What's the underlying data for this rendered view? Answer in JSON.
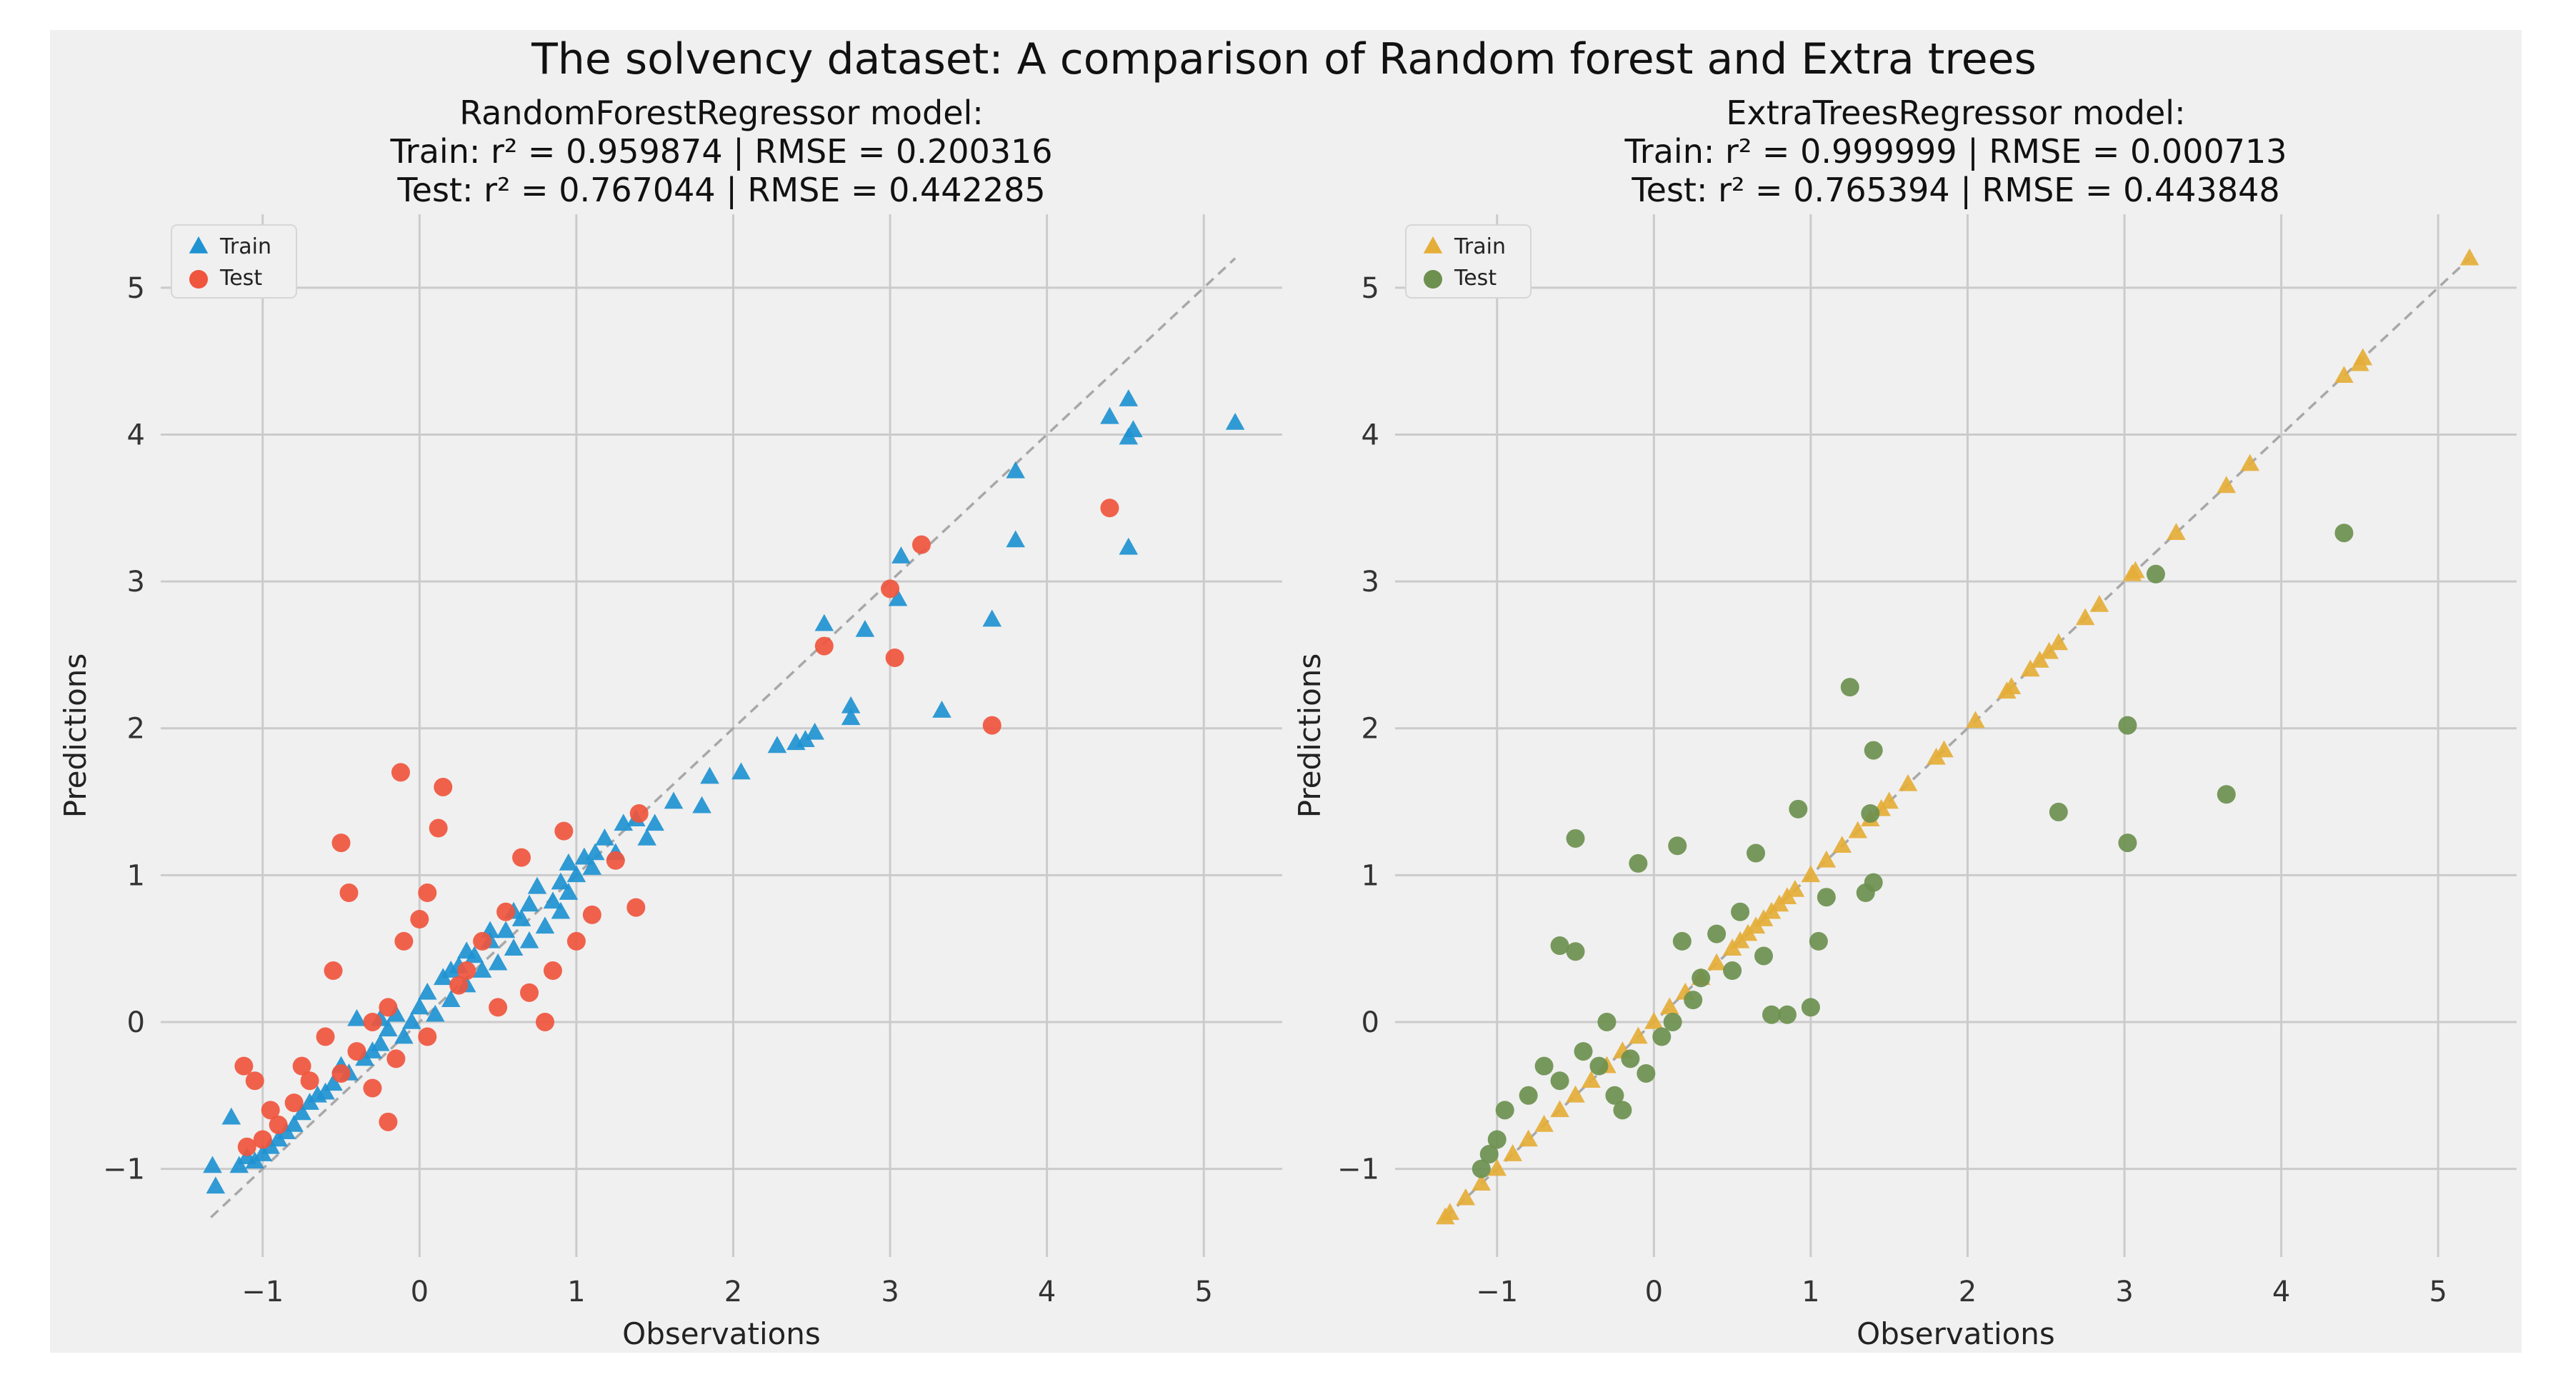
{
  "suptitle": "The solvency dataset: A comparison of  Random forest and Extra trees",
  "colors": {
    "figure_bg": "#f0f0f0",
    "axes_bg": "#f0f0f0",
    "grid": "#cbcbcb",
    "rf_train": "#1f93d1",
    "rf_test": "#f0553d",
    "et_train": "#e5ae38",
    "et_test": "#6d904f",
    "diagonal": "#a8a8a8"
  },
  "chart_data": [
    {
      "type": "scatter",
      "title": [
        "RandomForestRegressor model:",
        "Train: r² = 0.959874 | RMSE = 0.200316",
        "Test: r² = 0.767044 | RMSE = 0.442285"
      ],
      "xlabel": "Observations",
      "ylabel": "Predictions",
      "xlim": [
        -1.65,
        5.5
      ],
      "ylim": [
        -1.6,
        5.5
      ],
      "xticks": [
        -1,
        0,
        1,
        2,
        3,
        4,
        5
      ],
      "yticks": [
        -1,
        0,
        1,
        2,
        3,
        4,
        5
      ],
      "xticklabels": [
        "−1",
        "0",
        "1",
        "2",
        "3",
        "4",
        "5"
      ],
      "yticklabels": [
        "−1",
        "0",
        "1",
        "2",
        "3",
        "4",
        "5"
      ],
      "grid": true,
      "legend_position": "top-left",
      "diagonal": [
        -1.33,
        5.2
      ],
      "series": [
        {
          "name": "Train",
          "marker": "triangle",
          "color": "#1f93d1",
          "points": [
            [
              5.2,
              4.08
            ],
            [
              4.52,
              4.24
            ],
            [
              4.52,
              3.98
            ],
            [
              4.55,
              4.03
            ],
            [
              4.4,
              4.12
            ],
            [
              4.52,
              3.23
            ],
            [
              3.8,
              3.75
            ],
            [
              3.8,
              3.28
            ],
            [
              3.65,
              2.74
            ],
            [
              3.33,
              2.12
            ],
            [
              3.07,
              3.17
            ],
            [
              3.05,
              2.88
            ],
            [
              2.84,
              2.67
            ],
            [
              2.58,
              2.71
            ],
            [
              2.75,
              2.15
            ],
            [
              2.75,
              2.07
            ],
            [
              2.52,
              1.97
            ],
            [
              2.46,
              1.92
            ],
            [
              2.4,
              1.9
            ],
            [
              2.28,
              1.88
            ],
            [
              2.05,
              1.7
            ],
            [
              1.85,
              1.67
            ],
            [
              1.8,
              1.47
            ],
            [
              1.62,
              1.5
            ],
            [
              1.5,
              1.35
            ],
            [
              1.45,
              1.25
            ],
            [
              1.38,
              1.38
            ],
            [
              1.3,
              1.35
            ],
            [
              1.25,
              1.15
            ],
            [
              1.18,
              1.25
            ],
            [
              1.1,
              1.05
            ],
            [
              1.05,
              1.12
            ],
            [
              1.0,
              1.0
            ],
            [
              0.95,
              0.88
            ],
            [
              0.9,
              0.75
            ],
            [
              0.85,
              0.82
            ],
            [
              0.8,
              0.65
            ],
            [
              0.75,
              0.92
            ],
            [
              0.7,
              0.55
            ],
            [
              0.65,
              0.7
            ],
            [
              0.6,
              0.5
            ],
            [
              0.55,
              0.62
            ],
            [
              0.5,
              0.4
            ],
            [
              0.45,
              0.55
            ],
            [
              0.4,
              0.35
            ],
            [
              0.35,
              0.45
            ],
            [
              0.3,
              0.25
            ],
            [
              0.25,
              0.38
            ],
            [
              0.2,
              0.15
            ],
            [
              0.15,
              0.3
            ],
            [
              0.1,
              0.05
            ],
            [
              0.05,
              0.2
            ],
            [
              0.0,
              0.1
            ],
            [
              -0.05,
              0.0
            ],
            [
              -0.1,
              -0.1
            ],
            [
              -0.15,
              0.05
            ],
            [
              -0.2,
              -0.05
            ],
            [
              -0.25,
              -0.15
            ],
            [
              -0.3,
              -0.2
            ],
            [
              -0.35,
              -0.25
            ],
            [
              -0.4,
              0.02
            ],
            [
              -0.45,
              -0.35
            ],
            [
              -0.5,
              -0.3
            ],
            [
              -0.55,
              -0.42
            ],
            [
              -0.6,
              -0.48
            ],
            [
              -0.65,
              -0.5
            ],
            [
              -0.7,
              -0.55
            ],
            [
              -0.75,
              -0.62
            ],
            [
              -0.8,
              -0.7
            ],
            [
              -0.85,
              -0.75
            ],
            [
              -0.9,
              -0.8
            ],
            [
              -0.95,
              -0.85
            ],
            [
              -1.0,
              -0.9
            ],
            [
              -1.05,
              -0.95
            ],
            [
              -1.1,
              -0.92
            ],
            [
              -1.15,
              -0.98
            ],
            [
              -1.2,
              -0.65
            ],
            [
              -1.32,
              -0.98
            ],
            [
              -1.3,
              -1.12
            ],
            [
              0.6,
              0.75
            ],
            [
              0.45,
              0.62
            ],
            [
              0.3,
              0.48
            ],
            [
              0.7,
              0.8
            ],
            [
              0.9,
              0.95
            ],
            [
              0.2,
              0.35
            ],
            [
              -0.25,
              0.02
            ],
            [
              0.95,
              1.08
            ],
            [
              1.12,
              1.15
            ]
          ]
        },
        {
          "name": "Test",
          "marker": "circle",
          "color": "#f0553d",
          "points": [
            [
              4.4,
              3.5
            ],
            [
              3.65,
              2.02
            ],
            [
              3.2,
              3.25
            ],
            [
              3.0,
              2.95
            ],
            [
              3.03,
              2.48
            ],
            [
              2.58,
              2.56
            ],
            [
              1.4,
              1.42
            ],
            [
              1.38,
              0.78
            ],
            [
              1.25,
              1.1
            ],
            [
              1.1,
              0.73
            ],
            [
              1.0,
              0.55
            ],
            [
              0.92,
              1.3
            ],
            [
              0.85,
              0.35
            ],
            [
              0.8,
              0.0
            ],
            [
              0.65,
              1.12
            ],
            [
              0.55,
              0.75
            ],
            [
              0.4,
              0.55
            ],
            [
              0.3,
              0.35
            ],
            [
              0.15,
              1.6
            ],
            [
              0.12,
              1.32
            ],
            [
              0.05,
              0.88
            ],
            [
              -0.12,
              1.7
            ],
            [
              -0.5,
              1.22
            ],
            [
              -0.45,
              0.88
            ],
            [
              -0.1,
              0.55
            ],
            [
              0.0,
              0.7
            ],
            [
              -0.2,
              0.1
            ],
            [
              -0.3,
              0.0
            ],
            [
              -0.4,
              -0.2
            ],
            [
              -0.5,
              -0.35
            ],
            [
              -0.55,
              0.35
            ],
            [
              -0.6,
              -0.1
            ],
            [
              -0.7,
              -0.4
            ],
            [
              -0.75,
              -0.3
            ],
            [
              -0.8,
              -0.55
            ],
            [
              -0.9,
              -0.7
            ],
            [
              -1.0,
              -0.8
            ],
            [
              -1.05,
              -0.4
            ],
            [
              -1.12,
              -0.3
            ],
            [
              -1.1,
              -0.85
            ],
            [
              -0.95,
              -0.6
            ],
            [
              -0.2,
              -0.68
            ],
            [
              -0.3,
              -0.45
            ],
            [
              0.25,
              0.25
            ],
            [
              0.5,
              0.1
            ],
            [
              0.7,
              0.2
            ],
            [
              0.05,
              -0.1
            ],
            [
              -0.15,
              -0.25
            ]
          ]
        }
      ]
    },
    {
      "type": "scatter",
      "title": [
        "ExtraTreesRegressor model:",
        "Train: r² = 0.999999 | RMSE = 0.000713",
        "Test: r² = 0.765394 | RMSE = 0.443848"
      ],
      "xlabel": "Observations",
      "ylabel": "Predictions",
      "xlim": [
        -1.65,
        5.5
      ],
      "ylim": [
        -1.6,
        5.5
      ],
      "xticks": [
        -1,
        0,
        1,
        2,
        3,
        4,
        5
      ],
      "yticks": [
        -1,
        0,
        1,
        2,
        3,
        4,
        5
      ],
      "xticklabels": [
        "−1",
        "0",
        "1",
        "2",
        "3",
        "4",
        "5"
      ],
      "yticklabels": [
        "−1",
        "0",
        "1",
        "2",
        "3",
        "4",
        "5"
      ],
      "grid": true,
      "legend_position": "top-left",
      "diagonal": [
        -1.33,
        5.2
      ],
      "series": [
        {
          "name": "Train",
          "marker": "triangle",
          "color": "#e5ae38",
          "points": [
            [
              5.2,
              5.2
            ],
            [
              4.52,
              4.52
            ],
            [
              4.5,
              4.48
            ],
            [
              4.4,
              4.4
            ],
            [
              3.8,
              3.8
            ],
            [
              3.65,
              3.65
            ],
            [
              3.33,
              3.33
            ],
            [
              3.07,
              3.07
            ],
            [
              3.05,
              3.05
            ],
            [
              2.84,
              2.84
            ],
            [
              2.75,
              2.75
            ],
            [
              2.58,
              2.58
            ],
            [
              2.52,
              2.52
            ],
            [
              2.46,
              2.46
            ],
            [
              2.4,
              2.4
            ],
            [
              2.28,
              2.28
            ],
            [
              2.25,
              2.25
            ],
            [
              2.05,
              2.05
            ],
            [
              1.85,
              1.85
            ],
            [
              1.8,
              1.8
            ],
            [
              1.62,
              1.62
            ],
            [
              1.5,
              1.5
            ],
            [
              1.45,
              1.45
            ],
            [
              1.38,
              1.38
            ],
            [
              1.3,
              1.3
            ],
            [
              1.2,
              1.2
            ],
            [
              1.1,
              1.1
            ],
            [
              1.0,
              1.0
            ],
            [
              0.9,
              0.9
            ],
            [
              0.8,
              0.8
            ],
            [
              0.7,
              0.7
            ],
            [
              0.6,
              0.6
            ],
            [
              0.5,
              0.5
            ],
            [
              0.4,
              0.4
            ],
            [
              0.3,
              0.3
            ],
            [
              0.2,
              0.2
            ],
            [
              0.1,
              0.1
            ],
            [
              0.0,
              0.0
            ],
            [
              -0.1,
              -0.1
            ],
            [
              -0.2,
              -0.2
            ],
            [
              -0.3,
              -0.3
            ],
            [
              -0.4,
              -0.4
            ],
            [
              -0.5,
              -0.5
            ],
            [
              -0.6,
              -0.6
            ],
            [
              -0.7,
              -0.7
            ],
            [
              -0.8,
              -0.8
            ],
            [
              -0.9,
              -0.9
            ],
            [
              -1.0,
              -1.0
            ],
            [
              -1.1,
              -1.1
            ],
            [
              -1.2,
              -1.2
            ],
            [
              -1.3,
              -1.3
            ],
            [
              -1.33,
              -1.33
            ],
            [
              0.55,
              0.55
            ],
            [
              0.65,
              0.65
            ],
            [
              0.75,
              0.75
            ],
            [
              0.85,
              0.85
            ]
          ]
        },
        {
          "name": "Test",
          "marker": "circle",
          "color": "#6d904f",
          "points": [
            [
              4.4,
              3.33
            ],
            [
              3.65,
              1.55
            ],
            [
              3.2,
              3.05
            ],
            [
              3.02,
              2.02
            ],
            [
              3.02,
              1.22
            ],
            [
              2.58,
              1.43
            ],
            [
              1.4,
              1.85
            ],
            [
              1.25,
              2.28
            ],
            [
              1.4,
              0.95
            ],
            [
              1.35,
              0.88
            ],
            [
              1.38,
              1.42
            ],
            [
              1.1,
              0.85
            ],
            [
              1.05,
              0.55
            ],
            [
              1.0,
              0.1
            ],
            [
              0.92,
              1.45
            ],
            [
              0.85,
              0.05
            ],
            [
              0.75,
              0.05
            ],
            [
              0.65,
              1.15
            ],
            [
              0.55,
              0.75
            ],
            [
              0.5,
              0.35
            ],
            [
              0.3,
              0.3
            ],
            [
              0.15,
              1.2
            ],
            [
              0.18,
              0.55
            ],
            [
              0.12,
              0.0
            ],
            [
              -0.1,
              1.08
            ],
            [
              -0.5,
              1.25
            ],
            [
              -0.6,
              0.52
            ],
            [
              -0.5,
              0.48
            ],
            [
              -0.3,
              0.0
            ],
            [
              -0.45,
              -0.2
            ],
            [
              -0.6,
              -0.4
            ],
            [
              -0.8,
              -0.5
            ],
            [
              -0.95,
              -0.6
            ],
            [
              -1.0,
              -0.8
            ],
            [
              -1.05,
              -0.9
            ],
            [
              -1.1,
              -1.0
            ],
            [
              -0.2,
              -0.6
            ],
            [
              -0.35,
              -0.3
            ],
            [
              -0.15,
              -0.25
            ],
            [
              0.05,
              -0.1
            ],
            [
              0.25,
              0.15
            ],
            [
              0.4,
              0.6
            ],
            [
              0.7,
              0.45
            ],
            [
              -0.7,
              -0.3
            ],
            [
              -0.25,
              -0.5
            ],
            [
              -0.05,
              -0.35
            ]
          ]
        }
      ]
    }
  ]
}
